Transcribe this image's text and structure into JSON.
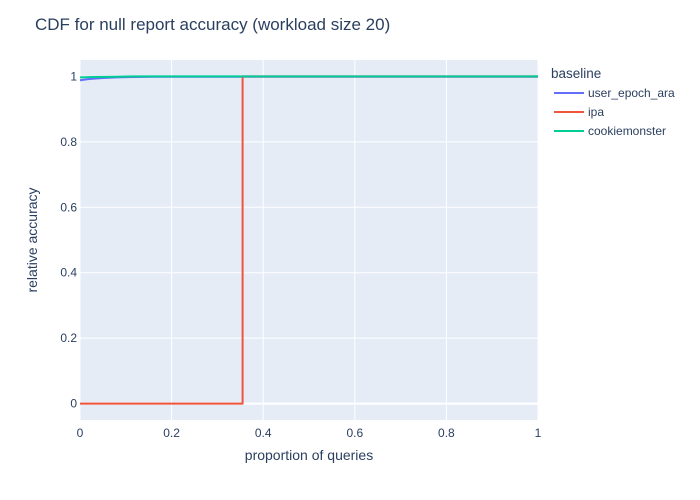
{
  "chart_data": {
    "type": "line",
    "title": "CDF for null report accuracy (workload size 20)",
    "xlabel": "proportion of queries",
    "ylabel": "relative accuracy",
    "xlim": [
      0,
      1
    ],
    "ylim": [
      -0.05,
      1.05
    ],
    "x_ticks": [
      0,
      0.2,
      0.4,
      0.6,
      0.8,
      1
    ],
    "x_tick_labels": [
      "0",
      "0.2",
      "0.4",
      "0.6",
      "0.8",
      "1"
    ],
    "y_ticks": [
      0,
      0.2,
      0.4,
      0.6,
      0.8,
      1
    ],
    "y_tick_labels": [
      "0",
      "0.2",
      "0.4",
      "0.6",
      "0.8",
      "1"
    ],
    "grid": true,
    "plot_background": "#e5ecf6",
    "legend": {
      "title": "baseline",
      "position": "right"
    },
    "series": [
      {
        "name": "user_epoch_ara",
        "color": "#636efa",
        "x": [
          0.0,
          0.02,
          0.05,
          0.08,
          0.12,
          0.16,
          1.0
        ],
        "y": [
          0.988,
          0.992,
          0.995,
          0.997,
          0.998,
          0.999,
          0.999
        ]
      },
      {
        "name": "ipa",
        "color": "#ef553b",
        "x": [
          0.0,
          0.355,
          0.355,
          1.0
        ],
        "y": [
          0.0,
          0.0,
          1.0,
          1.0
        ]
      },
      {
        "name": "cookiemonster",
        "color": "#00cc96",
        "x": [
          0.0,
          0.03,
          0.08,
          0.12,
          1.0
        ],
        "y": [
          0.997,
          0.998,
          0.999,
          1.0,
          1.0
        ]
      }
    ]
  }
}
